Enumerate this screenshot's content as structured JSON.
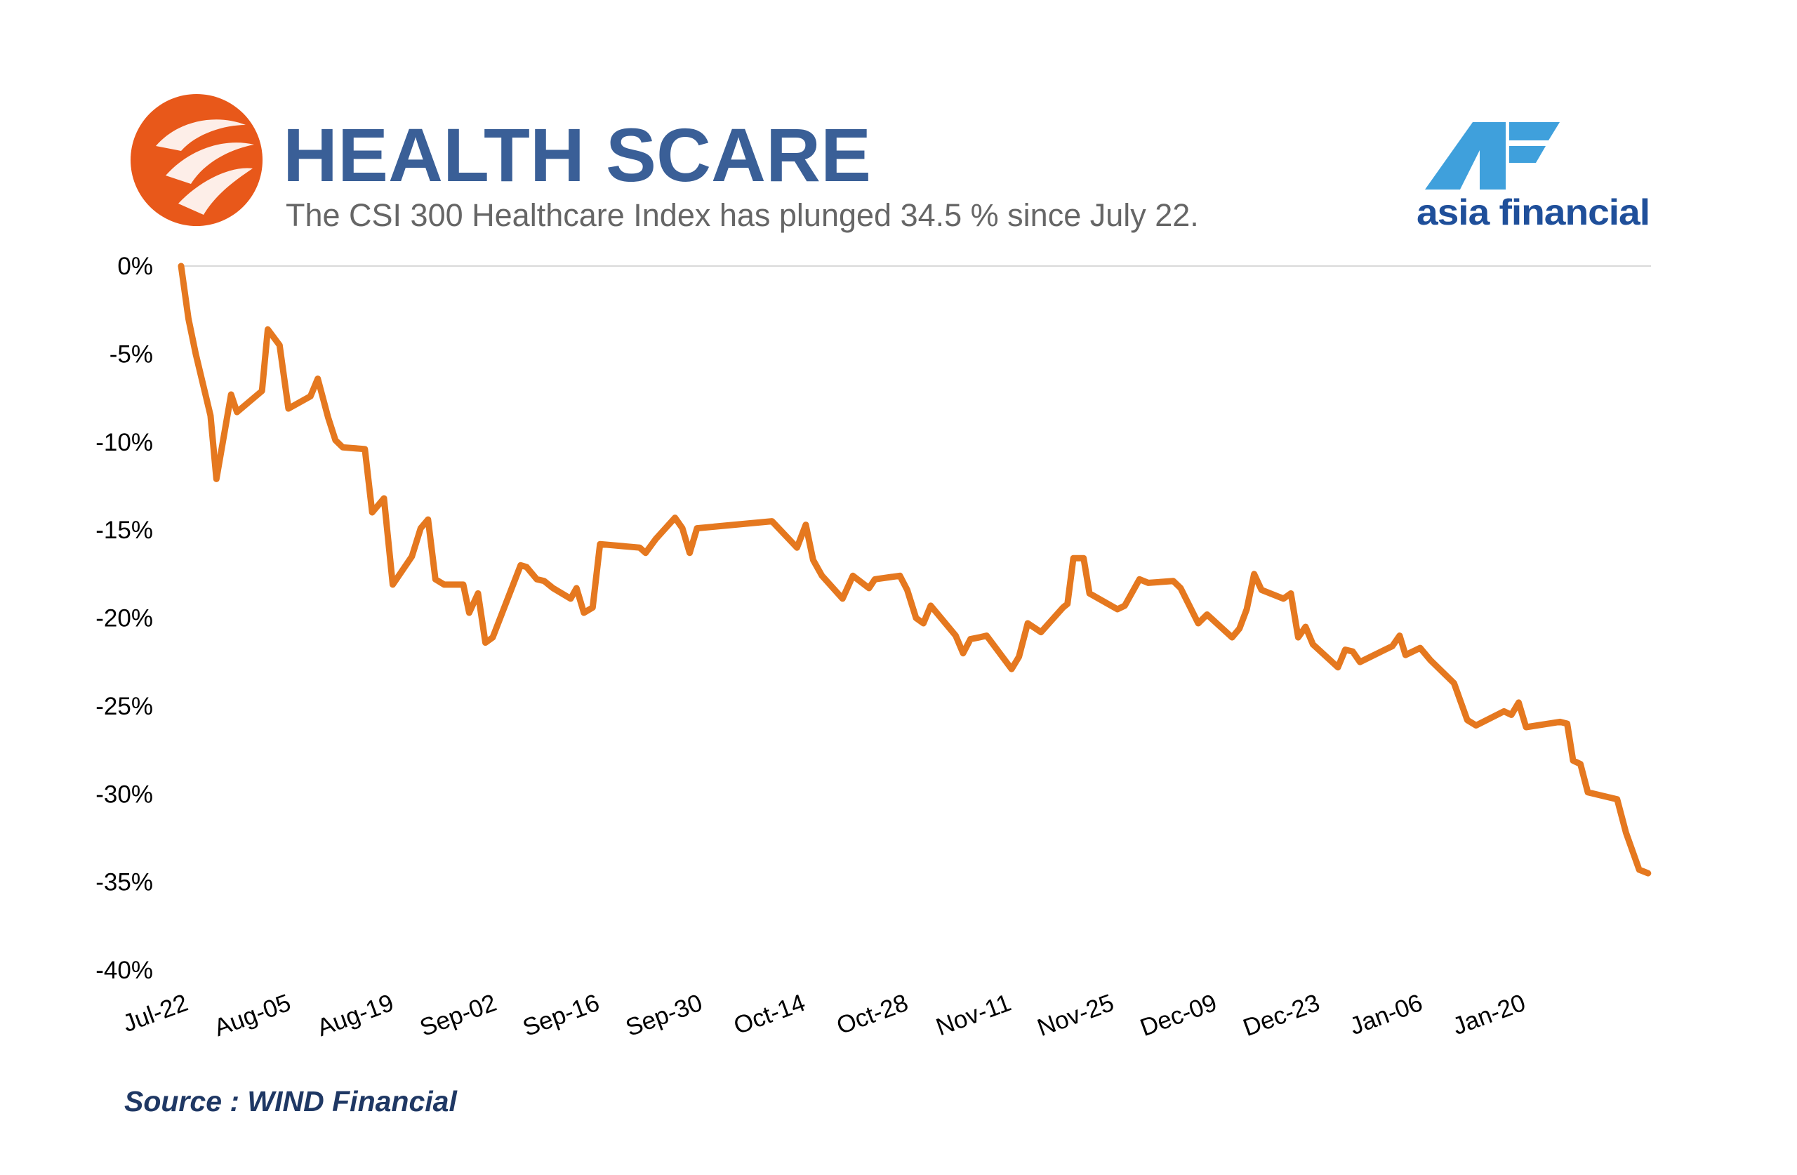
{
  "header": {
    "title": "HEALTH SCARE",
    "subtitle": "The CSI 300 Healthcare Index has plunged 34.5 % since July 22.",
    "brand_name": "asia financial",
    "logo_icon": "flame-circle-icon",
    "brand_icon": "af-logo-icon"
  },
  "source": "Source : WIND Financial",
  "colors": {
    "line": "#e5781f",
    "logo_orange": "#e8581a",
    "title": "#3a5f97",
    "brand_blue": "#1f4f9a",
    "brand_light": "#3fa0dc",
    "source": "#1f3864",
    "axis": "#d9d9d9"
  },
  "chart_data": {
    "type": "line",
    "title": "HEALTH SCARE",
    "xlabel": "",
    "ylabel": "",
    "ylim": [
      -40,
      0
    ],
    "yticks": [
      0,
      -5,
      -10,
      -15,
      -20,
      -25,
      -30,
      -35,
      -40
    ],
    "ytick_labels": [
      "0%",
      "-5%",
      "-10%",
      "-15%",
      "-20%",
      "-25%",
      "-30%",
      "-35%",
      "-40%"
    ],
    "xtick_labels": [
      "Jul-22",
      "Aug-05",
      "Aug-19",
      "Sep-02",
      "Sep-16",
      "Sep-30",
      "Oct-14",
      "Oct-28",
      "Nov-11",
      "Nov-25",
      "Dec-09",
      "Dec-23",
      "Jan-06",
      "Jan-20"
    ],
    "xlim": [
      0,
      96
    ],
    "grid": false,
    "legend": "none",
    "series": [
      {
        "values": [
          [
            0,
            0
          ],
          [
            0.5,
            -3
          ],
          [
            1,
            -5
          ],
          [
            2,
            -8.5
          ],
          [
            2.4,
            -12.1
          ],
          [
            3.4,
            -7.3
          ],
          [
            3.8,
            -8.3
          ],
          [
            5.5,
            -7.1
          ],
          [
            5.9,
            -3.6
          ],
          [
            6.7,
            -4.5
          ],
          [
            7.3,
            -8.1
          ],
          [
            8.8,
            -7.4
          ],
          [
            9.3,
            -6.4
          ],
          [
            10,
            -8.6
          ],
          [
            10.5,
            -9.9
          ],
          [
            11,
            -10.3
          ],
          [
            12.5,
            -10.4
          ],
          [
            13,
            -14
          ],
          [
            13.8,
            -13.2
          ],
          [
            14.4,
            -18.1
          ],
          [
            15.7,
            -16.5
          ],
          [
            16.3,
            -14.9
          ],
          [
            16.8,
            -14.4
          ],
          [
            17.3,
            -17.8
          ],
          [
            17.9,
            -18.1
          ],
          [
            19.2,
            -18.1
          ],
          [
            19.6,
            -19.7
          ],
          [
            20.2,
            -18.6
          ],
          [
            20.7,
            -21.4
          ],
          [
            21.2,
            -21.1
          ],
          [
            23.1,
            -17
          ],
          [
            23.5,
            -17.1
          ],
          [
            24.2,
            -17.8
          ],
          [
            24.7,
            -17.9
          ],
          [
            25.3,
            -18.3
          ],
          [
            26.5,
            -18.9
          ],
          [
            26.9,
            -18.3
          ],
          [
            27.4,
            -19.7
          ],
          [
            28,
            -19.4
          ],
          [
            28.5,
            -15.8
          ],
          [
            31.2,
            -16
          ],
          [
            31.6,
            -16.3
          ],
          [
            32.3,
            -15.5
          ],
          [
            33.6,
            -14.3
          ],
          [
            34.1,
            -14.9
          ],
          [
            34.6,
            -16.3
          ],
          [
            35.1,
            -14.9
          ],
          [
            40.2,
            -14.5
          ],
          [
            41.9,
            -16
          ],
          [
            42.5,
            -14.7
          ],
          [
            43,
            -16.7
          ],
          [
            43.6,
            -17.6
          ],
          [
            45,
            -18.9
          ],
          [
            45.7,
            -17.6
          ],
          [
            46.8,
            -18.3
          ],
          [
            47.2,
            -17.8
          ],
          [
            48.9,
            -17.6
          ],
          [
            49.4,
            -18.4
          ],
          [
            50,
            -20
          ],
          [
            50.5,
            -20.3
          ],
          [
            51,
            -19.3
          ],
          [
            52.7,
            -21
          ],
          [
            53.2,
            -22
          ],
          [
            53.7,
            -21.2
          ],
          [
            54.3,
            -21.1
          ],
          [
            54.8,
            -21
          ],
          [
            56.5,
            -22.9
          ],
          [
            57,
            -22.2
          ],
          [
            57.6,
            -20.3
          ],
          [
            58.5,
            -20.8
          ],
          [
            60,
            -19.4
          ],
          [
            60.3,
            -19.2
          ],
          [
            60.7,
            -16.6
          ],
          [
            61.4,
            -16.6
          ],
          [
            61.8,
            -18.6
          ],
          [
            63.7,
            -19.5
          ],
          [
            64.2,
            -19.3
          ],
          [
            65.2,
            -17.8
          ],
          [
            65.8,
            -18
          ],
          [
            67.5,
            -17.9
          ],
          [
            68,
            -18.3
          ],
          [
            69.2,
            -20.3
          ],
          [
            69.8,
            -19.8
          ],
          [
            71.5,
            -21.1
          ],
          [
            72,
            -20.6
          ],
          [
            72.5,
            -19.5
          ],
          [
            73,
            -17.5
          ],
          [
            73.5,
            -18.4
          ],
          [
            75,
            -18.9
          ],
          [
            75.5,
            -18.6
          ],
          [
            76,
            -21.1
          ],
          [
            76.5,
            -20.5
          ],
          [
            77,
            -21.5
          ],
          [
            78.7,
            -22.8
          ],
          [
            79.2,
            -21.8
          ],
          [
            79.7,
            -21.9
          ],
          [
            80.2,
            -22.5
          ],
          [
            81.9,
            -21.8
          ],
          [
            82.4,
            -21.6
          ],
          [
            82.9,
            -21
          ],
          [
            83.3,
            -22.1
          ],
          [
            84.3,
            -21.7
          ],
          [
            85,
            -22.4
          ],
          [
            86.6,
            -23.7
          ],
          [
            87.5,
            -25.8
          ],
          [
            88.1,
            -26.1
          ],
          [
            90,
            -25.3
          ],
          [
            90.5,
            -25.5
          ],
          [
            91,
            -24.8
          ],
          [
            91.5,
            -26.2
          ],
          [
            93.8,
            -25.9
          ],
          [
            94.3,
            -26
          ],
          [
            94.7,
            -28.1
          ],
          [
            95.2,
            -28.3
          ],
          [
            95.7,
            -29.9
          ],
          [
            97.2,
            -30.2
          ],
          [
            97.7,
            -30.3
          ],
          [
            98.3,
            -32.2
          ],
          [
            99.2,
            -34.3
          ],
          [
            99.8,
            -34.5
          ]
        ]
      }
    ]
  }
}
